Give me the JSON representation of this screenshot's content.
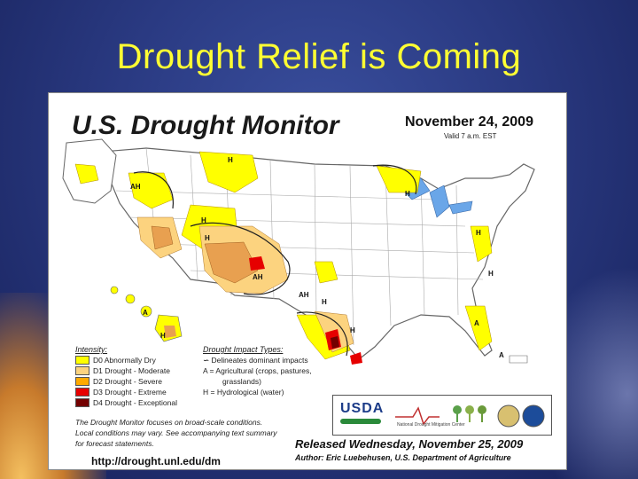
{
  "slide": {
    "title": "Drought Relief is Coming"
  },
  "monitor": {
    "title": "U.S. Drought Monitor",
    "date": "November 24, 2009",
    "valid": "Valid 7 a.m. EST",
    "intensity_title": "Intensity:",
    "intensity": [
      {
        "label": "D0 Abnormally Dry",
        "color": "#ffff00"
      },
      {
        "label": "D1 Drought - Moderate",
        "color": "#fcd37f"
      },
      {
        "label": "D2 Drought - Severe",
        "color": "#ffaa00"
      },
      {
        "label": "D3 Drought - Extreme",
        "color": "#e60000"
      },
      {
        "label": "D4 Drought - Exceptional",
        "color": "#730000"
      }
    ],
    "impact_title": "Drought Impact Types:",
    "impact": [
      "Delineates dominant impacts",
      "A = Agricultural (crops, pastures,",
      "grasslands)",
      "H = Hydrological (water)"
    ],
    "note": [
      "The Drought Monitor focuses on broad-scale conditions.",
      "Local conditions may vary. See accompanying text summary",
      "for forecast statements."
    ],
    "url": "http://drought.unl.edu/dm",
    "released": "Released Wednesday, November 25, 2009",
    "author": "Author: Eric Luebehusen, U.S. Department of Agriculture",
    "logos": {
      "usda": "USDA",
      "ndmc": "National Drought Mitigation Center"
    },
    "map_labels": {
      "nw_h": "H",
      "ah_west": "AH",
      "h_idaho": "H",
      "h_nevada": "H",
      "ah_sw": "AH",
      "ah_nm": "AH",
      "h_tx": "H",
      "h_gulf": "H",
      "h_mn": "H",
      "h_east": "H",
      "h_ne": "H",
      "a_fl": "A",
      "a_keys": "A",
      "a_hi": "A",
      "h_hi": "H"
    }
  }
}
